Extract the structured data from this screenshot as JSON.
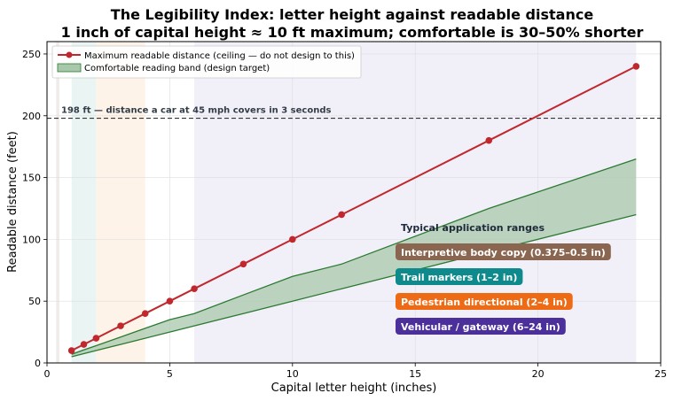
{
  "chart_data": {
    "type": "line",
    "title": "The Legibility Index: letter height against readable distance",
    "subtitle": "1 inch of capital height ≈ 10 ft maximum; comfortable is 30–50% shorter",
    "xlabel": "Capital letter height (inches)",
    "ylabel": "Readable distance (feet)",
    "xlim": [
      0,
      25
    ],
    "ylim": [
      0,
      260
    ],
    "xticks": [
      0,
      5,
      10,
      15,
      20,
      25
    ],
    "yticks": [
      0,
      50,
      100,
      150,
      200,
      250
    ],
    "legend_position": "top-left",
    "series": [
      {
        "name": "Maximum readable distance (ceiling — do not design to this)",
        "kind": "line-markers",
        "color": "#c0282d",
        "x": [
          1,
          1.5,
          2,
          3,
          4,
          5,
          6,
          8,
          10,
          12,
          18,
          24
        ],
        "y": [
          10,
          15,
          20,
          30,
          40,
          50,
          60,
          80,
          100,
          120,
          180,
          240
        ]
      },
      {
        "name": "Comfortable reading band (design target)",
        "kind": "band",
        "color": "#a8c8ac",
        "edge_color": "#2b7a30",
        "x": [
          1,
          1.5,
          2,
          3,
          4,
          5,
          6,
          8,
          10,
          12,
          18,
          24
        ],
        "y_low": [
          5,
          7.5,
          10,
          15,
          20,
          25,
          30,
          40,
          50,
          60,
          90,
          120
        ],
        "y_high": [
          7,
          10.5,
          14,
          21,
          28,
          35,
          40,
          55,
          70,
          80,
          125,
          165
        ]
      }
    ],
    "reference_line": {
      "y": 198,
      "label": "198 ft — distance a car at 45 mph covers in 3 seconds"
    },
    "ranges_heading": "Typical application ranges",
    "ranges": [
      {
        "name": "Interpretive body copy",
        "range_text": "(0.375–0.5 in)",
        "x0": 0.375,
        "x1": 0.5,
        "shade": "#e9e4e0",
        "color": "#8a6650"
      },
      {
        "name": "Trail markers",
        "range_text": "(1–2 in)",
        "x0": 1,
        "x1": 2,
        "shade": "#e3f0ef",
        "color": "#0e8a8c"
      },
      {
        "name": "Pedestrian directional",
        "range_text": "(2–4 in)",
        "x0": 2,
        "x1": 4,
        "shade": "#fdefe2",
        "color": "#ee6a14"
      },
      {
        "name": "Vehicular / gateway",
        "range_text": "(6–24 in)",
        "x0": 6,
        "x1": 24,
        "shade": "#ece9f5",
        "color": "#4b2f9a"
      }
    ]
  }
}
